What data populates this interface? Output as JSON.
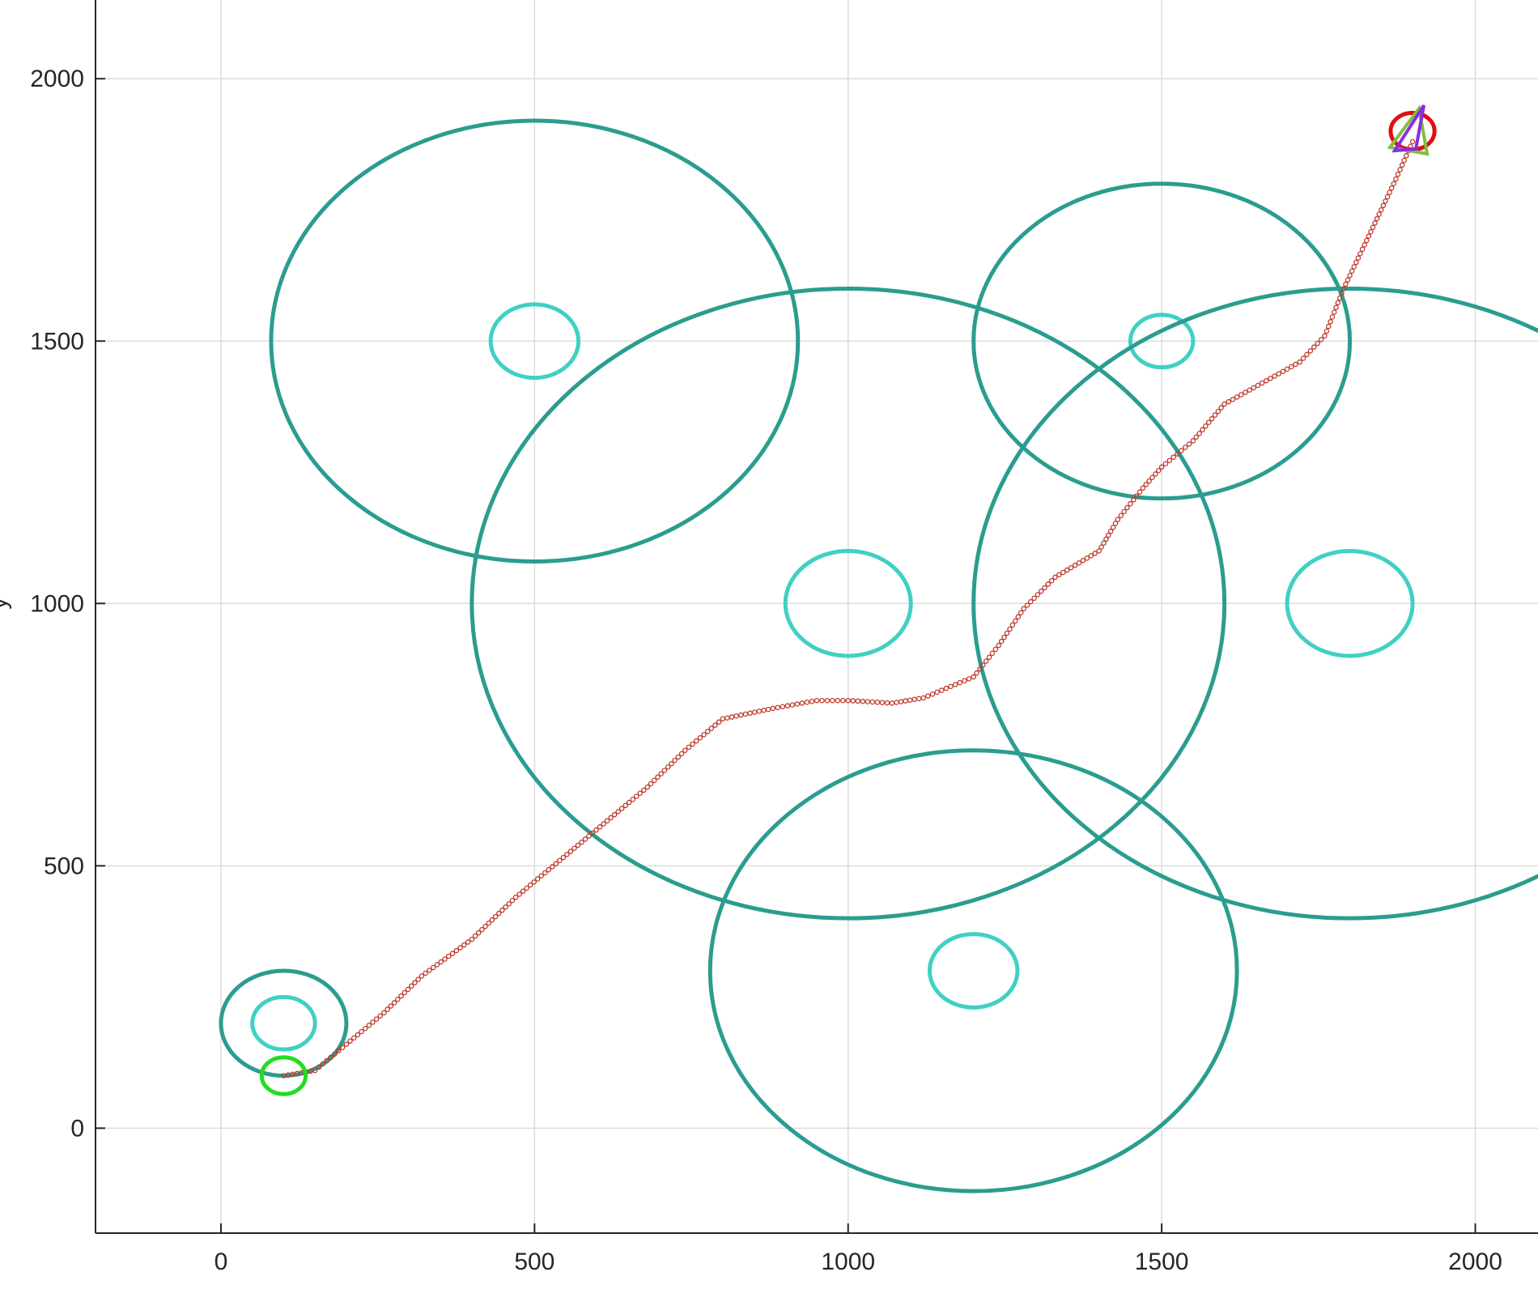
{
  "chart_data": {
    "type": "scatter",
    "title": "",
    "xlabel": "",
    "ylabel": "y",
    "xlim": [
      -200,
      2100
    ],
    "ylim": [
      -200,
      2150
    ],
    "grid": true,
    "x_ticks": [
      0,
      500,
      1000,
      1500,
      2000
    ],
    "y_ticks": [
      0,
      500,
      1000,
      1500,
      2000
    ],
    "x_tick_labels": [
      "0",
      "500",
      "1000",
      "1500",
      "2000"
    ],
    "y_tick_labels": [
      "0",
      "500",
      "1000",
      "1500",
      "2000"
    ],
    "obstacles": [
      {
        "cx": 100,
        "cy": 200,
        "outer_r": 100,
        "inner_r": 50
      },
      {
        "cx": 500,
        "cy": 1500,
        "outer_r": 420,
        "inner_r": 70
      },
      {
        "cx": 1000,
        "cy": 1000,
        "outer_r": 600,
        "inner_r": 100
      },
      {
        "cx": 1500,
        "cy": 1500,
        "outer_r": 300,
        "inner_r": 50
      },
      {
        "cx": 1800,
        "cy": 1000,
        "outer_r": 600,
        "inner_r": 100
      },
      {
        "cx": 1200,
        "cy": 300,
        "outer_r": 420,
        "inner_r": 70
      }
    ],
    "start": {
      "x": 100,
      "y": 100,
      "r": 35
    },
    "goal": {
      "x": 1900,
      "y": 1900,
      "r": 35
    },
    "goal_markers": [
      {
        "kind": "triangle",
        "color": "#7fbf3f"
      },
      {
        "kind": "triangle",
        "color": "#8a2be2"
      }
    ],
    "path": [
      [
        100,
        100
      ],
      [
        150,
        110
      ],
      [
        200,
        160
      ],
      [
        260,
        220
      ],
      [
        320,
        290
      ],
      [
        400,
        360
      ],
      [
        470,
        440
      ],
      [
        540,
        510
      ],
      [
        610,
        580
      ],
      [
        680,
        650
      ],
      [
        740,
        720
      ],
      [
        800,
        780
      ],
      [
        880,
        800
      ],
      [
        950,
        815
      ],
      [
        1000,
        815
      ],
      [
        1070,
        810
      ],
      [
        1120,
        820
      ],
      [
        1200,
        860
      ],
      [
        1240,
        920
      ],
      [
        1280,
        990
      ],
      [
        1330,
        1050
      ],
      [
        1400,
        1100
      ],
      [
        1430,
        1160
      ],
      [
        1470,
        1220
      ],
      [
        1500,
        1260
      ],
      [
        1550,
        1310
      ],
      [
        1600,
        1380
      ],
      [
        1660,
        1420
      ],
      [
        1720,
        1460
      ],
      [
        1760,
        1510
      ],
      [
        1790,
        1600
      ],
      [
        1830,
        1700
      ],
      [
        1870,
        1800
      ],
      [
        1900,
        1880
      ]
    ],
    "colors": {
      "obstacle_outer": "#2a9d8f",
      "obstacle_inner": "#40d0c4",
      "path": "#c0392b",
      "start": "#22dd22",
      "goal": "#e01010",
      "grid": "#dcdcdc",
      "axis": "#262626"
    }
  }
}
